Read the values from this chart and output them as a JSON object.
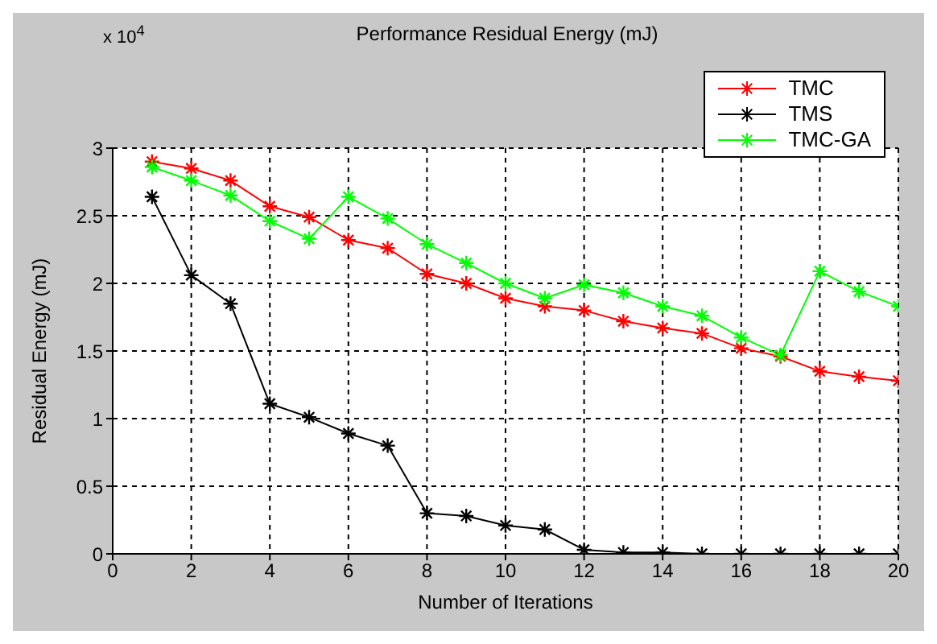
{
  "chart_data": {
    "type": "line",
    "title": "Performance Residual Energy (mJ)",
    "xlabel": "Number of Iterations",
    "ylabel": "Residual Energy (mJ)",
    "annotations": [
      "x 10$^{4}$"
    ],
    "x": [
      1,
      2,
      3,
      4,
      5,
      6,
      7,
      8,
      9,
      10,
      11,
      12,
      13,
      14,
      15,
      16,
      17,
      18,
      19,
      20
    ],
    "series": [
      {
        "name": "TMC",
        "color": "#ff0000",
        "values": [
          2.9,
          2.85,
          2.76,
          2.57,
          2.49,
          2.32,
          2.26,
          2.07,
          2.0,
          1.89,
          1.83,
          1.8,
          1.72,
          1.67,
          1.63,
          1.52,
          1.46,
          1.35,
          1.31,
          1.28
        ]
      },
      {
        "name": "TMS",
        "color": "#000000",
        "values": [
          2.64,
          2.06,
          1.85,
          1.11,
          1.01,
          0.89,
          0.8,
          0.3,
          0.28,
          0.21,
          0.18,
          0.03,
          0.01,
          0.01,
          0,
          0,
          0,
          0,
          0,
          0
        ]
      },
      {
        "name": "TMC-GA",
        "color": "#00ff00",
        "values": [
          2.86,
          2.76,
          2.65,
          2.46,
          2.33,
          2.64,
          2.48,
          2.29,
          2.15,
          2.0,
          1.89,
          1.99,
          1.93,
          1.83,
          1.76,
          1.6,
          1.47,
          2.09,
          1.94,
          1.83
        ]
      }
    ],
    "xlim": [
      0,
      20
    ],
    "xticks": [
      0,
      2,
      4,
      6,
      8,
      10,
      12,
      14,
      16,
      18,
      20
    ],
    "ylim": [
      0,
      3
    ],
    "yticks": [
      0,
      0.5,
      1,
      1.5,
      2,
      2.5,
      3
    ],
    "grid": true,
    "legend": "top right",
    "marker": "cross",
    "line_style": "solid"
  }
}
